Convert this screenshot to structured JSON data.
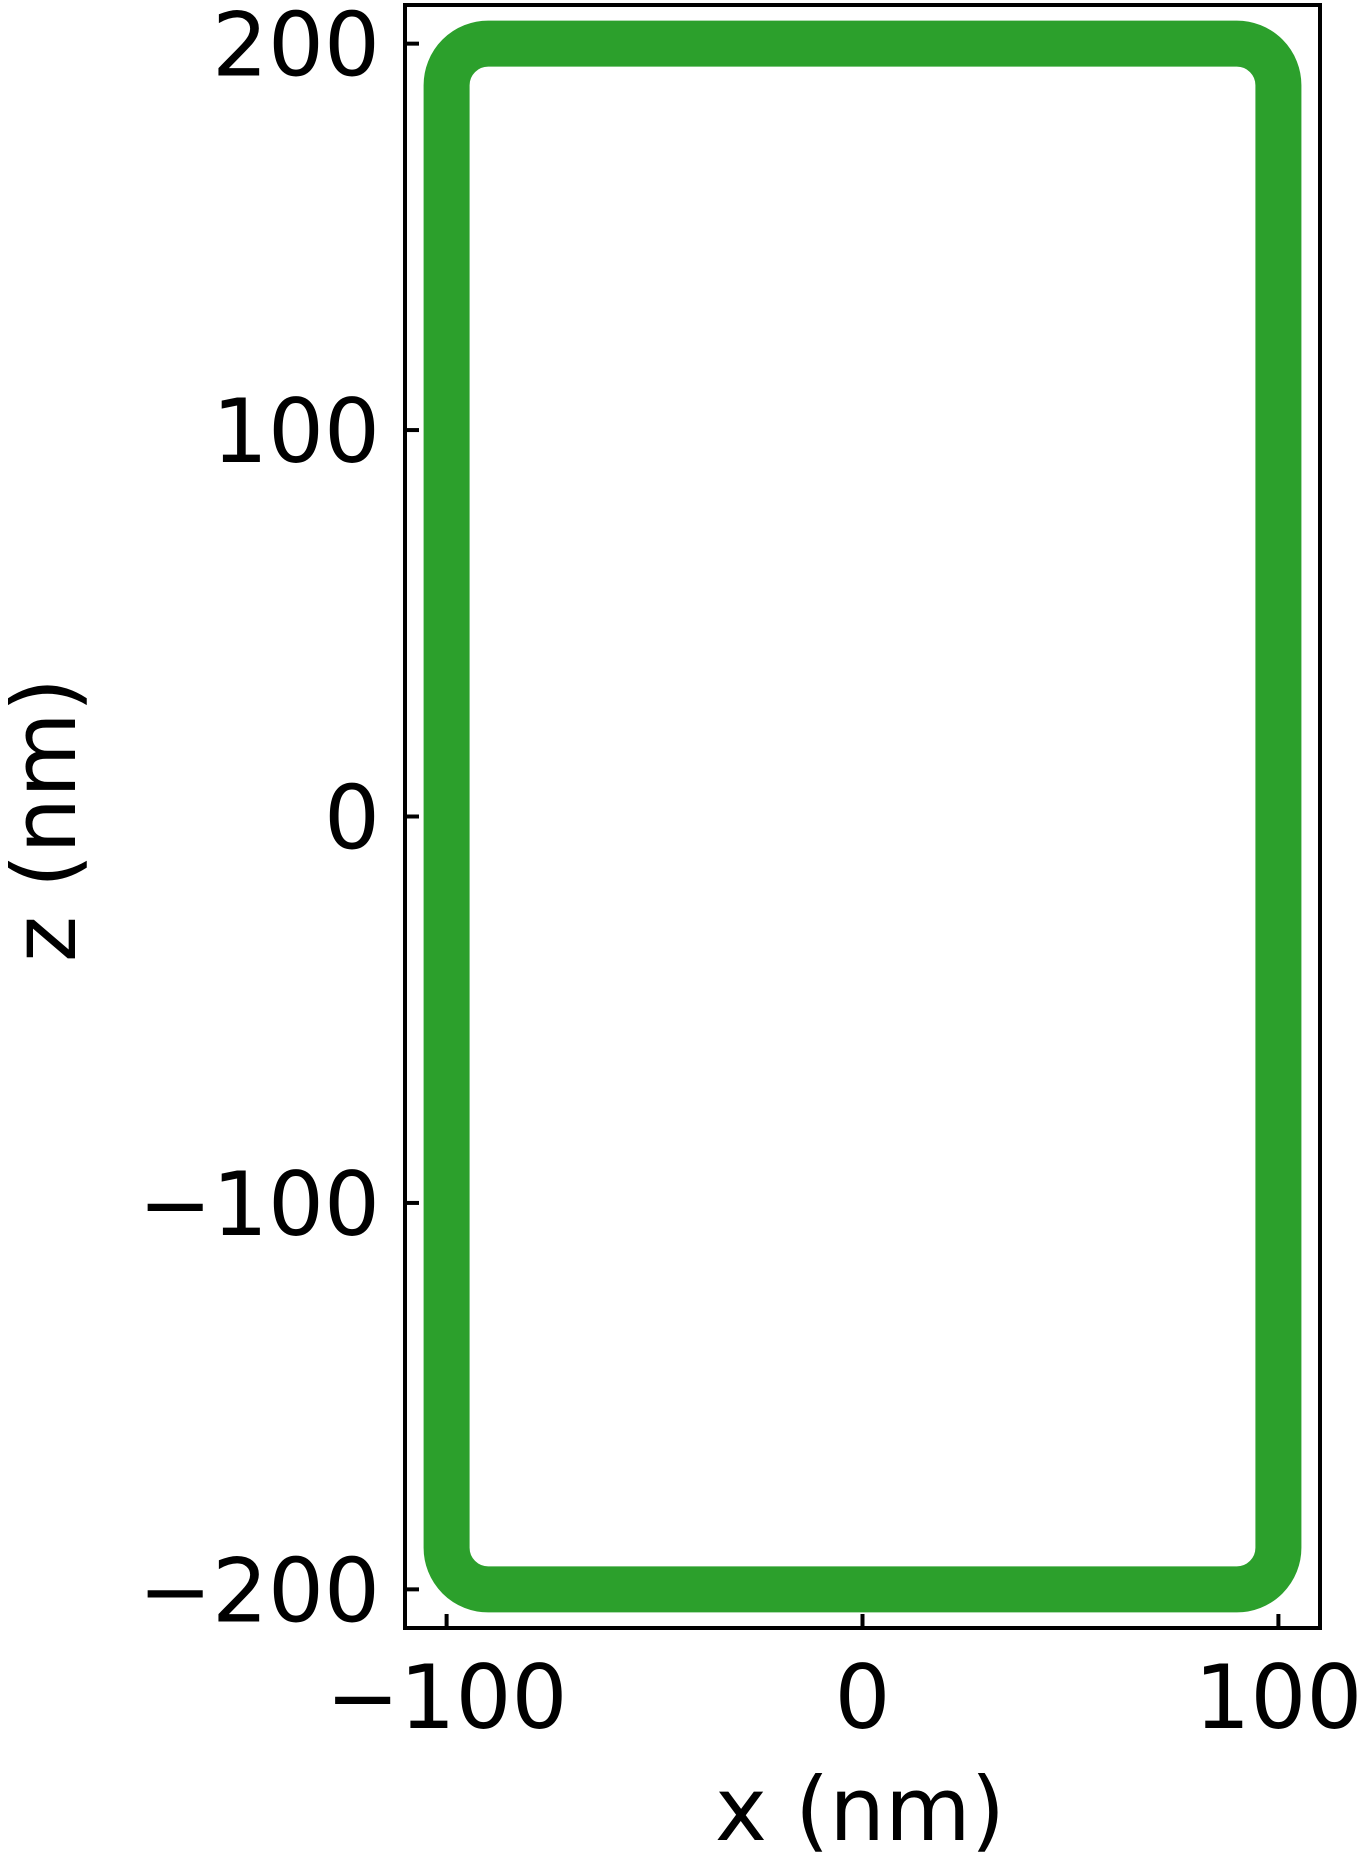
{
  "chart_data": {
    "type": "scatter",
    "title": "",
    "xlabel": "x (nm)",
    "ylabel": "z (nm)",
    "xlim": [
      -110,
      110
    ],
    "ylim": [
      -210,
      210
    ],
    "xticks": [
      -100,
      0,
      100
    ],
    "yticks": [
      -200,
      -100,
      0,
      100,
      200
    ],
    "xtick_labels": [
      "−100",
      "0",
      "100"
    ],
    "ytick_labels": [
      "−200",
      "−100",
      "0",
      "100",
      "200"
    ],
    "grid": false,
    "legend": null,
    "series": [
      {
        "color": "#2ca02c",
        "shape": "rounded-rectangle outline (dense markers)",
        "x_range": [
          -100,
          100
        ],
        "z_range": [
          -200,
          200
        ],
        "corner_radius": 10
      }
    ]
  }
}
